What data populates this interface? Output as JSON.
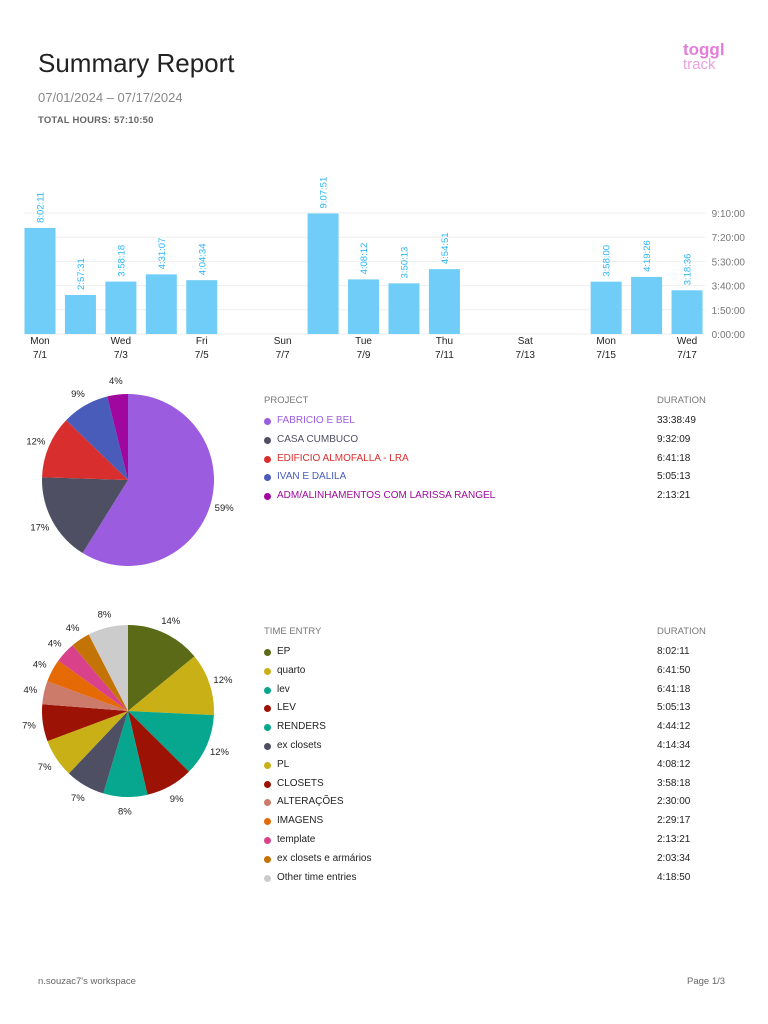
{
  "header": {
    "title": "Summary Report",
    "date_range": "07/01/2024 – 07/17/2024",
    "total_hours": "TOTAL HOURS: 57:10:50",
    "logo_top": "toggl",
    "logo_bottom": "track"
  },
  "chart_data": [
    {
      "type": "bar",
      "title": "",
      "xlabel": "",
      "ylabel": "",
      "categories": [
        "7/1",
        "7/2",
        "7/3",
        "7/4",
        "7/5",
        "7/6",
        "7/7",
        "7/8",
        "7/9",
        "7/10",
        "7/11",
        "7/12",
        "7/13",
        "7/14",
        "7/15",
        "7/16",
        "7/17"
      ],
      "values": [
        "8:02:11",
        "2:57:31",
        "3:58:18",
        "4:31:07",
        "4:04:34",
        "",
        "",
        "9:07:51",
        "4:08:12",
        "3:50:13",
        "4:54:51",
        "",
        "",
        "",
        "3:58:00",
        "4:19:26",
        "3:18:36"
      ],
      "x_tick_labels": [
        {
          "day": "Mon",
          "date": "7/1",
          "index": 0
        },
        {
          "day": "Wed",
          "date": "7/3",
          "index": 2
        },
        {
          "day": "Fri",
          "date": "7/5",
          "index": 4
        },
        {
          "day": "Sun",
          "date": "7/7",
          "index": 6
        },
        {
          "day": "Tue",
          "date": "7/9",
          "index": 8
        },
        {
          "day": "Thu",
          "date": "7/11",
          "index": 10
        },
        {
          "day": "Sat",
          "date": "7/13",
          "index": 12
        },
        {
          "day": "Mon",
          "date": "7/15",
          "index": 14
        },
        {
          "day": "Wed",
          "date": "7/17",
          "index": 16
        }
      ],
      "y_ticks": [
        "0:00:00",
        "1:50:00",
        "3:40:00",
        "5:30:00",
        "7:20:00",
        "9:10:00"
      ],
      "ylim": [
        "0:00:00",
        "9:10:00"
      ],
      "grid": true,
      "color": "#6fcdf7",
      "label_color": "#29b6f6"
    },
    {
      "type": "pie",
      "header": "PROJECT",
      "duration_header": "DURATION",
      "slices": [
        {
          "name": "FABRICIO E BEL",
          "duration": "33:38:49",
          "percent": "59%",
          "color": "#9b5ce0"
        },
        {
          "name": "CASA CUMBUCO",
          "duration": "9:32:09",
          "percent": "17%",
          "color": "#4f4f63"
        },
        {
          "name": "EDIFICIO ALMOFALLA - LRA",
          "duration": "6:41:18",
          "percent": "12%",
          "color": "#d92e2e"
        },
        {
          "name": "IVAN E DALILA",
          "duration": "5:05:13",
          "percent": "9%",
          "color": "#4a5cba"
        },
        {
          "name": "ADM/ALINHAMENTOS COM LARISSA RANGEL",
          "duration": "2:13:21",
          "percent": "4%",
          "color": "#a0079e"
        }
      ]
    },
    {
      "type": "pie",
      "header": "TIME ENTRY",
      "duration_header": "DURATION",
      "slices": [
        {
          "name": "EP",
          "duration": "8:02:11",
          "percent": "14%",
          "color": "#5a6a16"
        },
        {
          "name": "quarto",
          "duration": "6:41:50",
          "percent": "12%",
          "color": "#c9b016"
        },
        {
          "name": "lev",
          "duration": "6:41:18",
          "percent": "12%",
          "color": "#06a78e"
        },
        {
          "name": "LEV",
          "duration": "5:05:13",
          "percent": "9%",
          "color": "#9c1204"
        },
        {
          "name": "RENDERS",
          "duration": "4:44:12",
          "percent": "8%",
          "color": "#06a78e"
        },
        {
          "name": "ex closets",
          "duration": "4:14:34",
          "percent": "7%",
          "color": "#4f4f63"
        },
        {
          "name": "PL",
          "duration": "4:08:12",
          "percent": "7%",
          "color": "#c9b016"
        },
        {
          "name": "CLOSETS",
          "duration": "3:58:18",
          "percent": "7%",
          "color": "#9c1204"
        },
        {
          "name": "ALTERAÇÕES",
          "duration": "2:30:00",
          "percent": "4%",
          "color": "#cc7a6a"
        },
        {
          "name": "IMAGENS",
          "duration": "2:29:17",
          "percent": "4%",
          "color": "#e56a06"
        },
        {
          "name": "template",
          "duration": "2:13:21",
          "percent": "4%",
          "color": "#d9428a"
        },
        {
          "name": "ex closets e armários",
          "duration": "2:03:34",
          "percent": "4%",
          "color": "#c47306"
        },
        {
          "name": "Other time entries",
          "duration": "4:18:50",
          "percent": "8%",
          "color": "#cccccc"
        }
      ]
    }
  ],
  "footer": {
    "workspace": "n.souzac7's workspace",
    "page": "Page 1/3"
  }
}
